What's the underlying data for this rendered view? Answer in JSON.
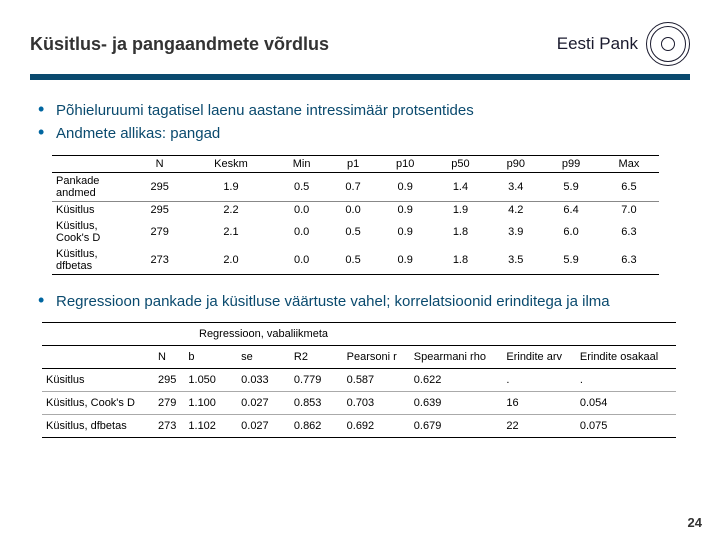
{
  "header": {
    "title": "Küsitlus- ja pangaandmete võrdlus",
    "brand": "Eesti Pank"
  },
  "bullets1": {
    "a": "Põhieluruumi tagatisel laenu aastane intressimäär protsentides",
    "b": "Andmete allikas: pangad"
  },
  "table1": {
    "headers": {
      "c0": "",
      "c1": "N",
      "c2": "Keskm",
      "c3": "Min",
      "c4": "p1",
      "c5": "p10",
      "c6": "p50",
      "c7": "p90",
      "c8": "p99",
      "c9": "Max"
    },
    "rows": [
      {
        "label": "Pankade andmed",
        "n": "295",
        "keskm": "1.9",
        "min": "0.5",
        "p1": "0.7",
        "p10": "0.9",
        "p50": "1.4",
        "p90": "3.4",
        "p99": "5.9",
        "max": "6.5"
      },
      {
        "label": "Küsitlus",
        "n": "295",
        "keskm": "2.2",
        "min": "0.0",
        "p1": "0.0",
        "p10": "0.9",
        "p50": "1.9",
        "p90": "4.2",
        "p99": "6.4",
        "max": "7.0"
      },
      {
        "label": "Küsitlus, Cook's D",
        "n": "279",
        "keskm": "2.1",
        "min": "0.0",
        "p1": "0.5",
        "p10": "0.9",
        "p50": "1.8",
        "p90": "3.9",
        "p99": "6.0",
        "max": "6.3"
      },
      {
        "label": "Küsitlus, dfbetas",
        "n": "273",
        "keskm": "2.0",
        "min": "0.0",
        "p1": "0.5",
        "p10": "0.9",
        "p50": "1.8",
        "p90": "3.5",
        "p99": "5.9",
        "max": "6.3"
      }
    ]
  },
  "bullets2": {
    "a": "Regressioon pankade ja küsitluse väärtuste vahel; korrelatsioonid erinditega ja ilma"
  },
  "table2": {
    "group": "Regressioon, vabaliikmeta",
    "headers": {
      "c0": "",
      "c1": "N",
      "c2": "b",
      "c3": "se",
      "c4": "R2",
      "c5": "Pearsoni r",
      "c6": "Spearmani rho",
      "c7": "Erindite arv",
      "c8": "Erindite osakaal"
    },
    "rows": [
      {
        "label": "Küsitlus",
        "n": "295",
        "b": "1.050",
        "se": "0.033",
        "r2": "0.779",
        "pr": "0.587",
        "sr": "0.622",
        "ea": ".",
        "eo": "."
      },
      {
        "label": "Küsitlus, Cook's D",
        "n": "279",
        "b": "1.100",
        "se": "0.027",
        "r2": "0.853",
        "pr": "0.703",
        "sr": "0.639",
        "ea": "16",
        "eo": "0.054"
      },
      {
        "label": "Küsitlus, dfbetas",
        "n": "273",
        "b": "1.102",
        "se": "0.027",
        "r2": "0.862",
        "pr": "0.692",
        "sr": "0.679",
        "ea": "22",
        "eo": "0.075"
      }
    ]
  },
  "page": "24"
}
